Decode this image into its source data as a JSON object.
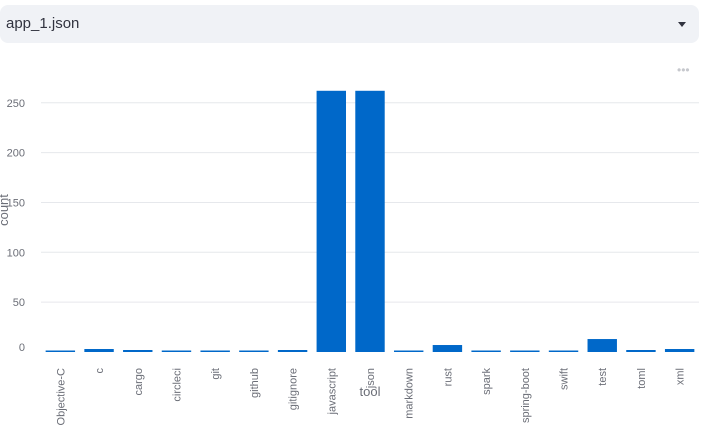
{
  "select": {
    "value": "app_1.json"
  },
  "colors": {
    "bar": "#0068c9",
    "select_bg": "#f0f2f6",
    "grid": "#e6e8ec"
  },
  "chart_data": {
    "type": "bar",
    "xlabel": "tool",
    "ylabel": "count",
    "ylim": [
      0,
      270
    ],
    "yticks": [
      0,
      50,
      100,
      150,
      200,
      250
    ],
    "grid": true,
    "categories": [
      "Objective-C",
      "c",
      "cargo",
      "circleci",
      "git",
      "github",
      "gitignore",
      "javascript",
      "json",
      "markdown",
      "rust",
      "spark",
      "spring-boot",
      "swift",
      "test",
      "toml",
      "xml"
    ],
    "values": [
      1,
      3,
      2,
      1,
      1,
      1,
      2,
      262,
      262,
      1,
      7,
      1,
      1,
      1,
      13,
      2,
      3
    ]
  }
}
